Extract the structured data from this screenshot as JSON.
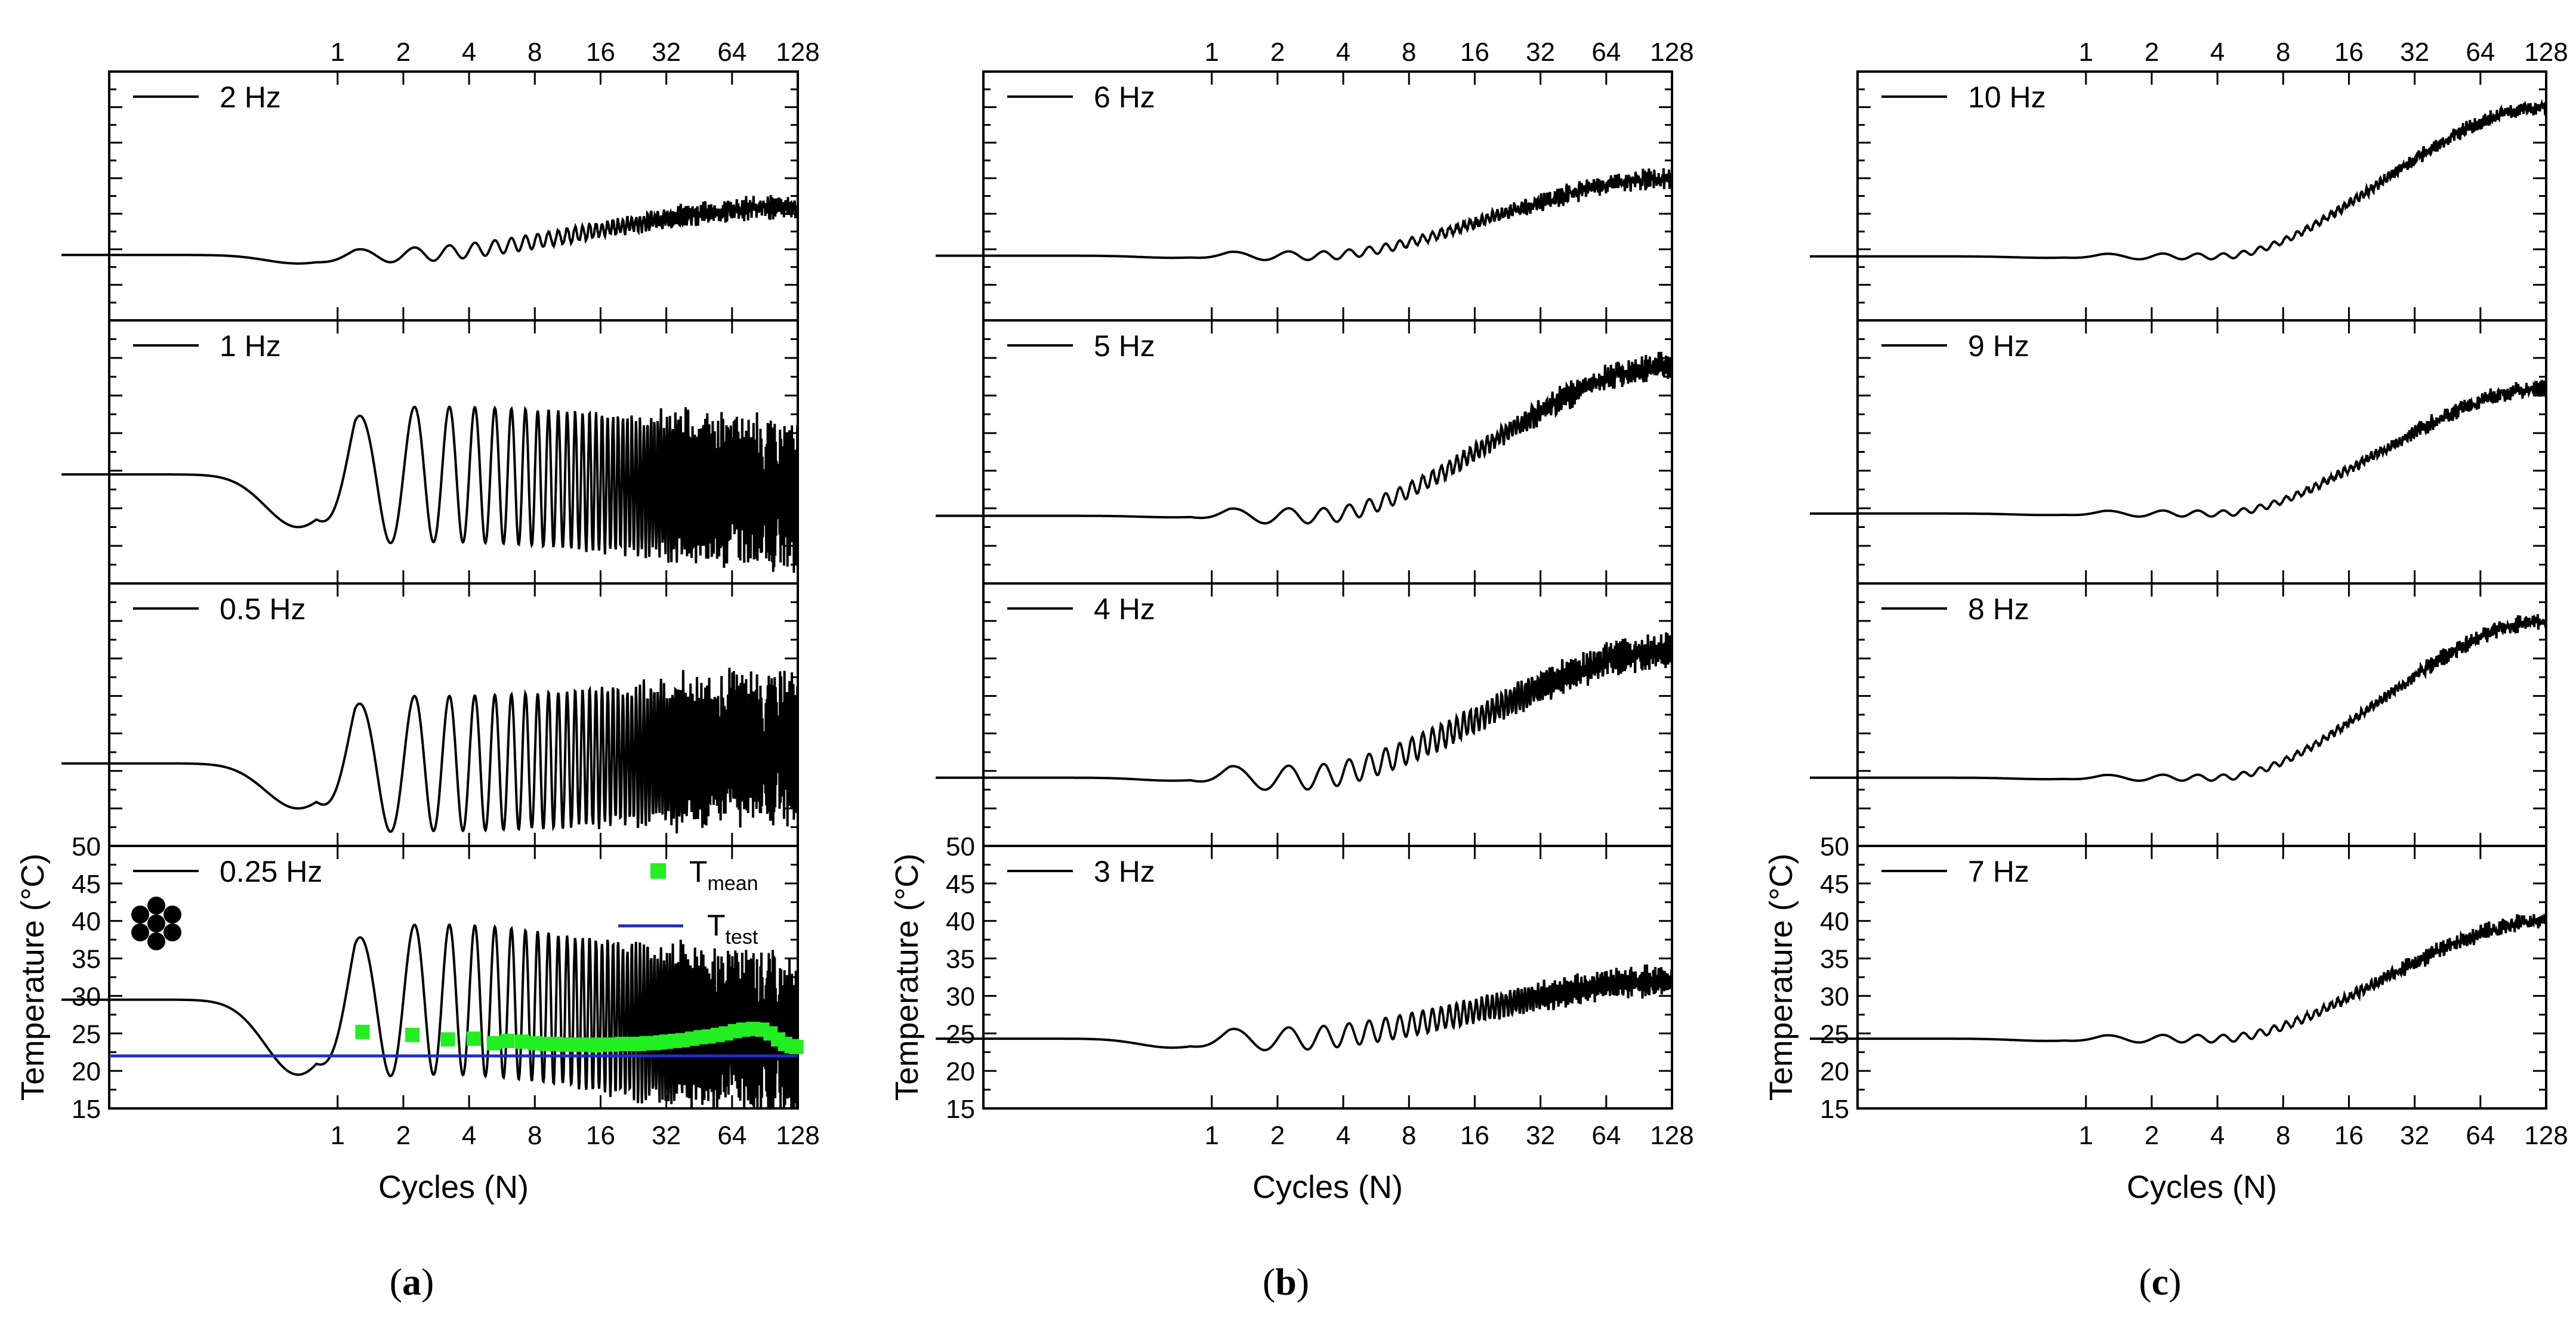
{
  "figure": {
    "title": "",
    "columns": [
      {
        "id": "a",
        "caption": "(a)",
        "caption_letter": "a"
      },
      {
        "id": "b",
        "caption": "(b)",
        "caption_letter": "b"
      },
      {
        "id": "c",
        "caption": "(c)",
        "caption_letter": "c"
      }
    ],
    "x_axis_label": "Cycles (N)",
    "y_axis_label": "Temperature (°C)",
    "legend": [
      {
        "label_main": "T",
        "label_sub": "mean",
        "color": "#22ee22",
        "marker": "square"
      },
      {
        "label_main": "T",
        "label_sub": "test",
        "color": "#1f2fbf",
        "marker": "line"
      }
    ],
    "specimen_icon": "seven-hole-specimen-icon"
  },
  "chart_data": {
    "type": "line",
    "x_scale": "log2",
    "x_ticks": [
      1,
      2,
      4,
      8,
      16,
      32,
      64,
      128
    ],
    "x_tick_labels": [
      "1",
      "2",
      "4",
      "8",
      "16",
      "32",
      "64",
      "128"
    ],
    "xlim": [
      0.09,
      128
    ],
    "y_ticks": [
      15,
      20,
      25,
      30,
      35,
      40,
      45,
      50
    ],
    "y_tick_labels": [
      "15",
      "20",
      "25",
      "30",
      "35",
      "40",
      "45",
      "50"
    ],
    "ylim": [
      15,
      50
    ],
    "xlabel": "Cycles (N)",
    "ylabel": "Temperature (°C)",
    "panels": [
      {
        "column": 0,
        "row": 0,
        "label": "2 Hz",
        "base": 24.2,
        "dip": 1.2,
        "osc": 1.0,
        "rise_start": 1.8,
        "rise_end": 128,
        "end_temp": 31,
        "noise": 1.6
      },
      {
        "column": 0,
        "row": 1,
        "label": "1 Hz",
        "base": 29.5,
        "dip": 7,
        "osc": 9,
        "rise_start": 3,
        "rise_end": 128,
        "end_temp": 27,
        "noise": 4
      },
      {
        "column": 0,
        "row": 2,
        "label": "0.5 Hz",
        "base": 26,
        "dip": 6,
        "osc": 9,
        "rise_start": 3,
        "rise_end": 128,
        "end_temp": 28,
        "noise": 4
      },
      {
        "column": 0,
        "row": 3,
        "label": "0.25 Hz",
        "base": 29.5,
        "dip": 10,
        "osc": 10,
        "rise_start": 3,
        "rise_end": 128,
        "end_temp": 24.5,
        "noise": 3.5
      },
      {
        "column": 1,
        "row": 0,
        "label": "6 Hz",
        "base": 24.1,
        "dip": 0.3,
        "osc": 0.6,
        "rise_start": 3,
        "rise_end": 128,
        "end_temp": 35,
        "noise": 2
      },
      {
        "column": 1,
        "row": 1,
        "label": "5 Hz",
        "base": 24,
        "dip": 0.2,
        "osc": 1.0,
        "rise_start": 3,
        "rise_end": 128,
        "end_temp": 44,
        "noise": 2
      },
      {
        "column": 1,
        "row": 2,
        "label": "4 Hz",
        "base": 24.1,
        "dip": 0.4,
        "osc": 1.6,
        "rise_start": 2.5,
        "rise_end": 128,
        "end_temp": 41,
        "noise": 2
      },
      {
        "column": 1,
        "row": 3,
        "label": "3 Hz",
        "base": 24.3,
        "dip": 1.2,
        "osc": 1.5,
        "rise_start": 2.2,
        "rise_end": 128,
        "end_temp": 32,
        "noise": 1.6
      },
      {
        "column": 2,
        "row": 0,
        "label": "10 Hz",
        "base": 24,
        "dip": 0.2,
        "osc": 0.4,
        "rise_start": 4,
        "rise_end": 128,
        "end_temp": 45,
        "noise": 1.6
      },
      {
        "column": 2,
        "row": 1,
        "label": "9 Hz",
        "base": 24.3,
        "dip": 0.2,
        "osc": 0.4,
        "rise_start": 4,
        "rise_end": 128,
        "end_temp": 41,
        "noise": 1.6
      },
      {
        "column": 2,
        "row": 2,
        "label": "8 Hz",
        "base": 24.1,
        "dip": 0.2,
        "osc": 0.4,
        "rise_start": 4,
        "rise_end": 128,
        "end_temp": 45,
        "noise": 1.6
      },
      {
        "column": 2,
        "row": 3,
        "label": "7 Hz",
        "base": 24.3,
        "dip": 0.3,
        "osc": 0.5,
        "rise_start": 4,
        "rise_end": 128,
        "end_temp": 40,
        "noise": 1.6
      }
    ],
    "t_mean_points": [
      {
        "x": 1.3,
        "y": 25.2
      },
      {
        "x": 2.2,
        "y": 24.8
      },
      {
        "x": 3.2,
        "y": 24.2
      },
      {
        "x": 4.2,
        "y": 24.3
      },
      {
        "x": 5.2,
        "y": 23.7
      },
      {
        "x": 6.0,
        "y": 24.0
      },
      {
        "x": 7.0,
        "y": 23.9
      },
      {
        "x": 8.0,
        "y": 23.7
      },
      {
        "x": 9.0,
        "y": 23.6
      },
      {
        "x": 10.0,
        "y": 23.6
      },
      {
        "x": 11.0,
        "y": 23.5
      },
      {
        "x": 12.0,
        "y": 23.5
      },
      {
        "x": 13.0,
        "y": 23.5
      },
      {
        "x": 14.0,
        "y": 23.5
      },
      {
        "x": 15.0,
        "y": 23.4
      },
      {
        "x": 16.0,
        "y": 23.5
      },
      {
        "x": 18.0,
        "y": 23.5
      },
      {
        "x": 20.0,
        "y": 23.6
      },
      {
        "x": 22.0,
        "y": 23.6
      },
      {
        "x": 24.0,
        "y": 23.6
      },
      {
        "x": 26.0,
        "y": 23.7
      },
      {
        "x": 28.0,
        "y": 23.7
      },
      {
        "x": 30.0,
        "y": 23.8
      },
      {
        "x": 32.0,
        "y": 23.9
      },
      {
        "x": 35.0,
        "y": 24.0
      },
      {
        "x": 38.0,
        "y": 24.1
      },
      {
        "x": 42.0,
        "y": 24.3
      },
      {
        "x": 46.0,
        "y": 24.5
      },
      {
        "x": 50.0,
        "y": 24.6
      },
      {
        "x": 55.0,
        "y": 24.8
      },
      {
        "x": 60.0,
        "y": 25.0
      },
      {
        "x": 66.0,
        "y": 25.3
      },
      {
        "x": 72.0,
        "y": 25.5
      },
      {
        "x": 80.0,
        "y": 25.6
      },
      {
        "x": 88.0,
        "y": 25.5
      },
      {
        "x": 96.0,
        "y": 25.0
      },
      {
        "x": 104.0,
        "y": 24.2
      },
      {
        "x": 112.0,
        "y": 23.6
      },
      {
        "x": 120.0,
        "y": 23.3
      },
      {
        "x": 126.0,
        "y": 23.2
      }
    ],
    "t_test_value": 22
  }
}
